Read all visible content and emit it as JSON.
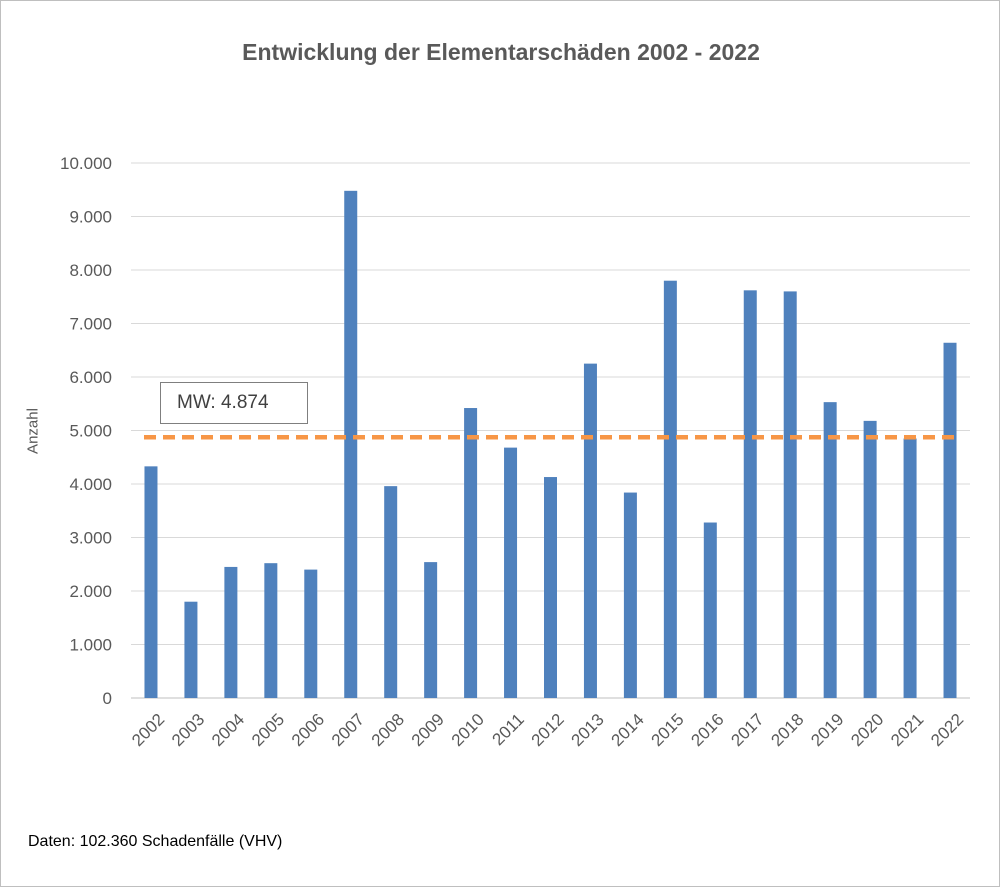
{
  "chart_data": {
    "type": "bar",
    "title": "Entwicklung der Elementarschäden 2002 - 2022",
    "ylabel": "Anzahl",
    "xlabel": "",
    "categories": [
      "2002",
      "2003",
      "2004",
      "2005",
      "2006",
      "2007",
      "2008",
      "2009",
      "2010",
      "2011",
      "2012",
      "2013",
      "2014",
      "2015",
      "2016",
      "2017",
      "2018",
      "2019",
      "2020",
      "2021",
      "2022"
    ],
    "values": [
      4330,
      1800,
      2450,
      2520,
      2400,
      9480,
      3960,
      2540,
      5420,
      4680,
      4130,
      6250,
      3840,
      7800,
      3280,
      7620,
      7600,
      5530,
      5180,
      4850,
      6640
    ],
    "ylim": [
      0,
      10000
    ],
    "yticks": [
      0,
      1000,
      2000,
      3000,
      4000,
      5000,
      6000,
      7000,
      8000,
      9000,
      10000
    ],
    "ytick_labels": [
      "0",
      "1.000",
      "2.000",
      "3.000",
      "4.000",
      "5.000",
      "6.000",
      "7.000",
      "8.000",
      "9.000",
      "10.000"
    ],
    "grid": true,
    "bar_color": "#4f81bd",
    "mean_line": {
      "value": 4874,
      "label": "MW: 4.874",
      "color": "#f79646",
      "style": "dashed"
    }
  },
  "footer": "Daten: 102.360 Schadenfälle (VHV)"
}
